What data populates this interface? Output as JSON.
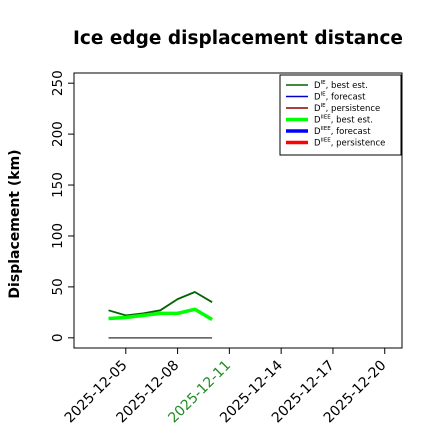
{
  "chart_data": {
    "type": "line",
    "title": "Ice edge displacement distance",
    "xlabel": "",
    "ylabel": "Displacement (km)",
    "ylim": [
      -10,
      260
    ],
    "xlim": [
      "2025-12-02",
      "2025-12-21"
    ],
    "x_tick_labels": [
      "2025-12-05",
      "2025-12-08",
      "2025-12-11",
      "2025-12-14",
      "2025-12-17",
      "2025-12-20"
    ],
    "x_tick_highlight": "2025-12-11",
    "x_tick_highlight_color": "#228B22",
    "y_ticks": [
      0,
      50,
      100,
      150,
      200,
      250
    ],
    "grid": false,
    "legend_position": "top-right",
    "series": [
      {
        "name": "D^IE, best est.",
        "color": "#006400",
        "line": "thin",
        "x": [
          "2025-12-04",
          "2025-12-05",
          "2025-12-06",
          "2025-12-07",
          "2025-12-08",
          "2025-12-09",
          "2025-12-10"
        ],
        "values": [
          27,
          22,
          24,
          27,
          38,
          45,
          35
        ]
      },
      {
        "name": "D^IE, forecast",
        "color": "#0000cd",
        "line": "thin",
        "x": [],
        "values": []
      },
      {
        "name": "D^IE, persistence",
        "color": "#8b0000",
        "line": "thin",
        "x": [],
        "values": []
      },
      {
        "name": "D^IIEE, best est.",
        "color": "#00ff00",
        "line": "thick",
        "x": [
          "2025-12-04",
          "2025-12-05",
          "2025-12-06",
          "2025-12-07",
          "2025-12-08",
          "2025-12-09",
          "2025-12-10"
        ],
        "values": [
          19,
          20,
          22,
          24,
          24,
          28,
          18
        ]
      },
      {
        "name": "D^IIEE, forecast",
        "color": "#0000ff",
        "line": "thick",
        "x": [],
        "values": []
      },
      {
        "name": "D^IIEE, persistence",
        "color": "#ff0000",
        "line": "thick",
        "x": [],
        "values": []
      }
    ],
    "reference_line": {
      "x": [
        "2025-12-04",
        "2025-12-10"
      ],
      "values": [
        0,
        0
      ],
      "color": "#555555"
    },
    "legend": [
      {
        "base": "D",
        "sup": "IE",
        "rest": ", best est.",
        "color": "#006400",
        "line": "thin"
      },
      {
        "base": "D",
        "sup": "IE",
        "rest": ", forecast",
        "color": "#0000cd",
        "line": "thin"
      },
      {
        "base": "D",
        "sup": "IE",
        "rest": ", persistence",
        "color": "#8b0000",
        "line": "thin"
      },
      {
        "base": "D",
        "sup": "IIEE",
        "rest": ", best est.",
        "color": "#00ff00",
        "line": "thick"
      },
      {
        "base": "D",
        "sup": "IIEE",
        "rest": ", forecast",
        "color": "#0000ff",
        "line": "thick"
      },
      {
        "base": "D",
        "sup": "IIEE",
        "rest": ", persistence",
        "color": "#ff0000",
        "line": "thick"
      }
    ]
  }
}
